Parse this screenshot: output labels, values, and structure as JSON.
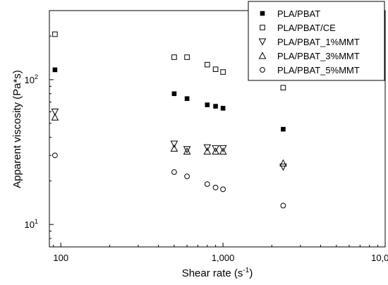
{
  "chart_data": {
    "type": "scatter",
    "title": "",
    "xlabel": "Shear rate (s",
    "xlabel_sup": "-1",
    "xlabel_end": ")",
    "ylabel": "Apparent viscosity (Pa*s)",
    "x_scale": "log",
    "y_scale": "log",
    "xlim": [
      85,
      10000
    ],
    "ylim": [
      7,
      300
    ],
    "x_ticks": [
      {
        "value": 100,
        "label": "100"
      },
      {
        "value": 1000,
        "label": "1,000"
      },
      {
        "value": 10000,
        "label": "10,000"
      }
    ],
    "y_ticks": [
      {
        "value": 10,
        "label": "10",
        "sup": "1"
      },
      {
        "value": 100,
        "label": "10",
        "sup": "2"
      }
    ],
    "grid": false,
    "legend_position": "top-right",
    "series": [
      {
        "name": "PLA/PBAT",
        "marker": "filled-square",
        "points": [
          [
            92,
            117
          ],
          [
            500,
            80
          ],
          [
            600,
            74
          ],
          [
            800,
            67
          ],
          [
            900,
            65.5
          ],
          [
            1000,
            63.5
          ],
          [
            2350,
            45.5
          ]
        ]
      },
      {
        "name": "PLA/PBAT/CE",
        "marker": "open-square",
        "points": [
          [
            92,
            206
          ],
          [
            500,
            143
          ],
          [
            600,
            143
          ],
          [
            800,
            127
          ],
          [
            900,
            118
          ],
          [
            1000,
            113
          ],
          [
            2350,
            88
          ]
        ]
      },
      {
        "name": "PLA/PBAT_1%MMT",
        "marker": "triangle-down",
        "points": [
          [
            92,
            60
          ],
          [
            500,
            36
          ],
          [
            600,
            33
          ],
          [
            800,
            34
          ],
          [
            900,
            33.5
          ],
          [
            1000,
            33.5
          ],
          [
            2350,
            25
          ]
        ]
      },
      {
        "name": "PLA/PBAT_3%MMT",
        "marker": "triangle-up",
        "points": [
          [
            92,
            55
          ],
          [
            500,
            33.5
          ],
          [
            600,
            32
          ],
          [
            800,
            32
          ],
          [
            900,
            32
          ],
          [
            1000,
            32
          ],
          [
            2350,
            26.5
          ]
        ]
      },
      {
        "name": "PLA/PBAT_5%MMT",
        "marker": "open-circle",
        "points": [
          [
            92,
            30
          ],
          [
            500,
            23
          ],
          [
            600,
            21.5
          ],
          [
            800,
            19
          ],
          [
            900,
            18
          ],
          [
            1000,
            17.5
          ],
          [
            2350,
            13.5
          ]
        ]
      }
    ]
  }
}
